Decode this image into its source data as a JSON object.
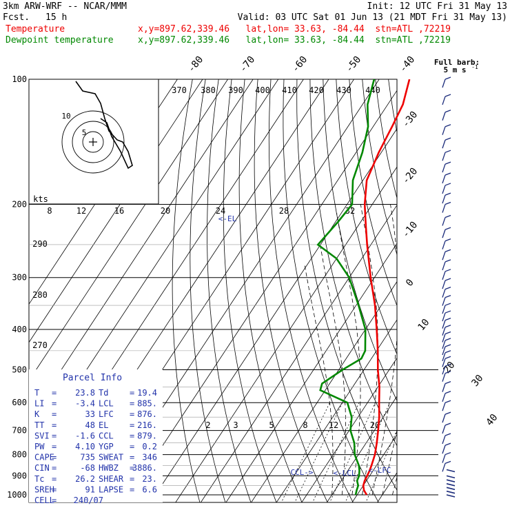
{
  "header": {
    "model": "3km ARW-WRF -- NCAR/MMM",
    "init": "Init: 12 UTC Fri 31 May 13",
    "fcst_label": "Fcst.",
    "fcst_value": "15 h",
    "valid": "Valid: 03 UTC Sat 01 Jun 13 (21 MDT Fri 31 May 13)"
  },
  "legend": [
    {
      "name": "Temperature",
      "info": "x,y=897.62,339.46   lat,lon= 33.63, -84.44  stn=ATL ,72219",
      "color": "#ee0000"
    },
    {
      "name": "Dewpoint temperature",
      "info": "x,y=897.62,339.46   lat,lon= 33.63, -84.44  stn=ATL ,72219",
      "color": "#008800"
    }
  ],
  "wind_key": {
    "line1": "Full barb:",
    "line2": "5 m s",
    "exp": "-1"
  },
  "chart_data": {
    "type": "line",
    "chart_kind": "skew-T log-p sounding",
    "y_scale": "log",
    "ylim": [
      1000,
      100
    ],
    "pressure_ticks": [
      "100",
      "200",
      "300",
      "400",
      "500",
      "600",
      "700",
      "800",
      "900",
      "1000"
    ],
    "temperature_ticks": [
      "-80",
      "-70",
      "-60",
      "-50",
      "-40",
      "-30",
      "-20",
      "-10",
      "0",
      "10",
      "20",
      "30",
      "40"
    ],
    "theta_labels": [
      "370",
      "380",
      "390",
      "400",
      "410",
      "420",
      "430",
      "440"
    ],
    "theta_left_labels": [
      "290",
      "280",
      "270"
    ],
    "mixing_ratio_labels": [
      "2",
      "3",
      "5",
      "8",
      "12",
      "20"
    ],
    "hodograph_kts_label": "kts",
    "hodograph_speed_labels": [
      "8",
      "12",
      "16",
      "20",
      "24",
      "28",
      "32"
    ],
    "hodograph_ring_labels": [
      "5",
      "10"
    ],
    "level_labels": [
      "<-EL",
      "CCL->",
      "<-LCL",
      "<-LFC"
    ],
    "series": [
      {
        "name": "Temperature",
        "color": "#ee0000",
        "points": [
          [
            1000,
            23.8
          ],
          [
            975,
            21.5
          ],
          [
            950,
            20.0
          ],
          [
            925,
            19.3
          ],
          [
            900,
            19.0
          ],
          [
            875,
            18.6
          ],
          [
            850,
            18.0
          ],
          [
            800,
            16.5
          ],
          [
            750,
            14.2
          ],
          [
            700,
            11.5
          ],
          [
            650,
            8.4
          ],
          [
            600,
            4.6
          ],
          [
            550,
            0.6
          ],
          [
            500,
            -4.5
          ],
          [
            450,
            -9.5
          ],
          [
            400,
            -15.5
          ],
          [
            350,
            -22.5
          ],
          [
            300,
            -31.5
          ],
          [
            250,
            -41.5
          ],
          [
            225,
            -47.0
          ],
          [
            200,
            -53.0
          ],
          [
            175,
            -58.5
          ],
          [
            150,
            -61.0
          ],
          [
            130,
            -62.5
          ],
          [
            115,
            -64.0
          ],
          [
            100,
            -68.0
          ]
        ]
      },
      {
        "name": "Dewpoint temperature",
        "color": "#008800",
        "points": [
          [
            1000,
            19.4
          ],
          [
            975,
            18.6
          ],
          [
            950,
            18.0
          ],
          [
            925,
            16.3
          ],
          [
            900,
            15.8
          ],
          [
            875,
            14.6
          ],
          [
            850,
            13.0
          ],
          [
            800,
            8.5
          ],
          [
            750,
            5.3
          ],
          [
            700,
            0.5
          ],
          [
            650,
            -2.5
          ],
          [
            600,
            -8.0
          ],
          [
            560,
            -22.0
          ],
          [
            540,
            -23.0
          ],
          [
            500,
            -18.5
          ],
          [
            470,
            -14.0
          ],
          [
            450,
            -14.5
          ],
          [
            400,
            -20.0
          ],
          [
            350,
            -29.0
          ],
          [
            300,
            -40.0
          ],
          [
            270,
            -50.0
          ],
          [
            250,
            -61.0
          ],
          [
            220,
            -59.0
          ],
          [
            200,
            -58.0
          ],
          [
            175,
            -64.0
          ],
          [
            150,
            -67.5
          ],
          [
            130,
            -72.0
          ],
          [
            115,
            -78.0
          ],
          [
            100,
            -82.0
          ]
        ]
      }
    ]
  },
  "wind_barbs_pressure": [
    100,
    110,
    120,
    130,
    140,
    150,
    160,
    170,
    180,
    190,
    200,
    215,
    230,
    245,
    260,
    275,
    290,
    305,
    320,
    335,
    350,
    365,
    380,
    395,
    410,
    425,
    440,
    455,
    470,
    490,
    510,
    540,
    570,
    600,
    640,
    680,
    720,
    760,
    800,
    840,
    870,
    900,
    920,
    940,
    960,
    980,
    1000
  ],
  "parcel_info": {
    "title": "Parcel Info",
    "rows": [
      {
        "l1": "T",
        "v1": "23.8",
        "l2": "Td",
        "v2": "19.4"
      },
      {
        "l1": "LI",
        "v1": "-3.4",
        "l2": "LCL",
        "v2": "885."
      },
      {
        "l1": "K",
        "v1": "33",
        "l2": "LFC",
        "v2": "876."
      },
      {
        "l1": "TT",
        "v1": "48",
        "l2": "EL",
        "v2": "216."
      },
      {
        "l1": "SVI",
        "v1": "-1.6",
        "l2": "CCL",
        "v2": "879."
      },
      {
        "l1": "PW",
        "v1": "4.10",
        "l2": "YGP",
        "v2": "0.2"
      },
      {
        "l1": "CAPE",
        "v1": "735",
        "l2": "SWEAT",
        "v2": "346"
      },
      {
        "l1": "CIN",
        "v1": "-68",
        "l2": "HWBZ",
        "v2": "3886."
      },
      {
        "l1": "Tc",
        "v1": "26.2",
        "l2": "SHEAR",
        "v2": "23."
      },
      {
        "l1": "SREH",
        "v1": "91",
        "l2": "LAPSE",
        "v2": "6.6"
      },
      {
        "l1": "CELL",
        "v1": "240/07",
        "l2": "",
        "v2": ""
      }
    ]
  }
}
